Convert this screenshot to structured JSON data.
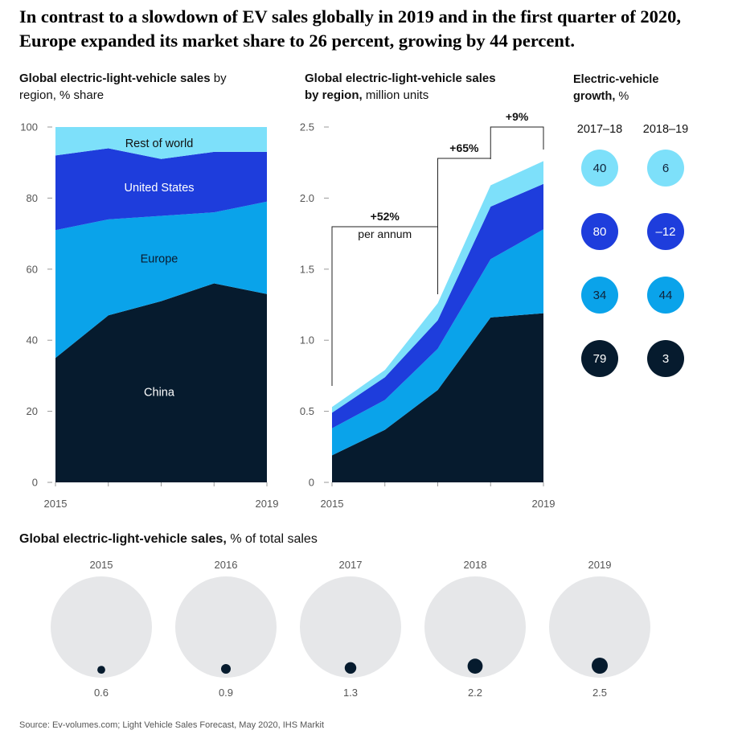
{
  "headline": "In contrast to a slowdown of EV sales globally in 2019 and in the first quarter of 2020, Europe expanded its market share to 26 percent, growing by 44 percent.",
  "colors": {
    "China": "#061b2e",
    "Europe": "#0aa3ea",
    "United States": "#1e3ddc",
    "Rest of world": "#7de0fa",
    "circle_bg": "#e6e7e9",
    "dot": "#061b2e"
  },
  "panel_share": {
    "title_bold": "Global electric-light-vehicle sales",
    "title_rest": " by region, % share"
  },
  "panel_units": {
    "title_bold": "Global electric-light-vehicle sales by region,",
    "title_rest": " million units",
    "annotations": [
      {
        "label": "+52%",
        "sub": "per annum",
        "from": 2015,
        "to": 2017
      },
      {
        "label": "+65%",
        "sub": "",
        "from": 2017,
        "to": 2018
      },
      {
        "label": "+9%",
        "sub": "",
        "from": 2018,
        "to": 2019
      }
    ]
  },
  "panel_growth": {
    "title_bold": "Electric-vehicle growth,",
    "title_rest": " %"
  },
  "panel_pct": {
    "title_bold": "Global electric-light-vehicle sales,",
    "title_rest": " % of total sales"
  },
  "source": "Source: Ev-volumes.com; Light Vehicle Sales Forecast, May 2020, IHS Markit",
  "chart_data": [
    {
      "type": "area",
      "stacked": true,
      "title": "Global electric-light-vehicle sales by region, % share",
      "x": [
        2015,
        2016,
        2017,
        2018,
        2019
      ],
      "x_tick_labels": [
        "2015",
        "",
        "",
        "",
        "2019"
      ],
      "ylim": [
        0,
        100
      ],
      "yticks": [
        0,
        20,
        40,
        60,
        80,
        100
      ],
      "series": [
        {
          "name": "China",
          "values": [
            35,
            47,
            51,
            56,
            53
          ]
        },
        {
          "name": "Europe",
          "values": [
            36,
            27,
            24,
            20,
            26
          ]
        },
        {
          "name": "United States",
          "values": [
            21,
            20,
            16,
            17,
            14
          ]
        },
        {
          "name": "Rest of world",
          "values": [
            8,
            6,
            9,
            7,
            7
          ]
        }
      ]
    },
    {
      "type": "area",
      "stacked": true,
      "title": "Global electric-light-vehicle sales by region, million units",
      "x": [
        2015,
        2016,
        2017,
        2018,
        2019
      ],
      "x_tick_labels": [
        "2015",
        "",
        "",
        "",
        "2019"
      ],
      "ylim": [
        0,
        2.5
      ],
      "yticks": [
        "0",
        "0.5",
        "1.0",
        "1.5",
        "2.0",
        "2.5"
      ],
      "series": [
        {
          "name": "China",
          "values": [
            0.19,
            0.37,
            0.65,
            1.16,
            1.19
          ]
        },
        {
          "name": "Europe",
          "values": [
            0.19,
            0.21,
            0.29,
            0.41,
            0.59
          ]
        },
        {
          "name": "United States",
          "values": [
            0.11,
            0.16,
            0.2,
            0.37,
            0.32
          ]
        },
        {
          "name": "Rest of world",
          "values": [
            0.04,
            0.05,
            0.12,
            0.15,
            0.16
          ]
        }
      ]
    },
    {
      "type": "table",
      "title": "Electric-vehicle growth, %",
      "columns": [
        "2017–18",
        "2018–19"
      ],
      "rows": [
        {
          "name": "Rest of world",
          "values": [
            "40",
            "6"
          ]
        },
        {
          "name": "United States",
          "values": [
            "80",
            "–12"
          ]
        },
        {
          "name": "Europe",
          "values": [
            "34",
            "44"
          ]
        },
        {
          "name": "China",
          "values": [
            "79",
            "3"
          ]
        }
      ]
    },
    {
      "type": "scatter",
      "title": "Global electric-light-vehicle sales, % of total sales",
      "categories": [
        "2015",
        "2016",
        "2017",
        "2018",
        "2019"
      ],
      "values": [
        0.6,
        0.9,
        1.3,
        2.2,
        2.5
      ],
      "labels": [
        "0.6",
        "0.9",
        "1.3",
        "2.2",
        "2.5"
      ]
    }
  ]
}
